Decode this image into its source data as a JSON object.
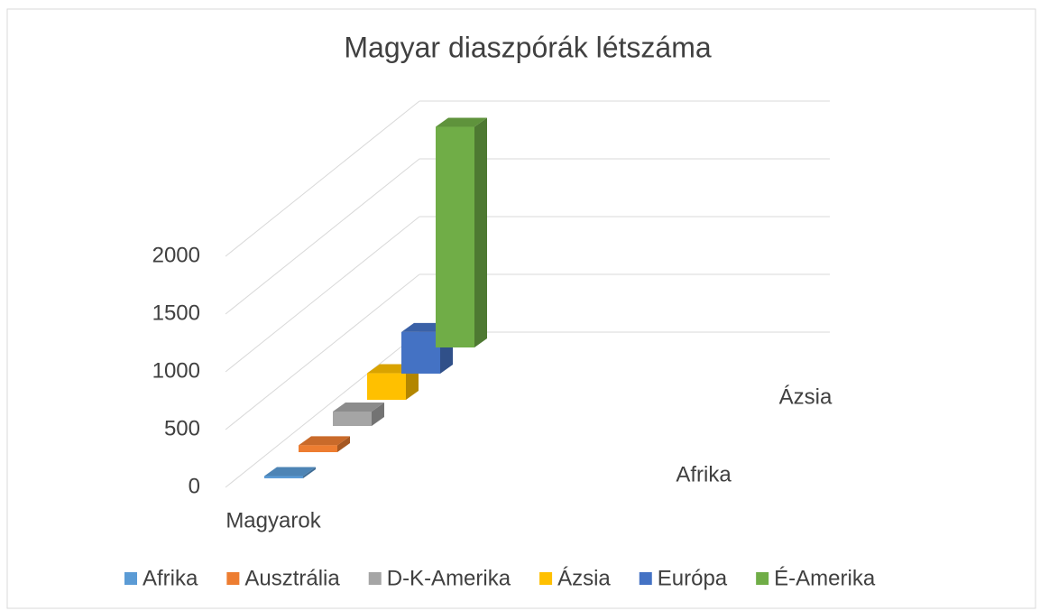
{
  "chart_data": {
    "type": "bar3d",
    "title": "Magyar diaszpórák létszáma",
    "categories": [
      "Magyarok"
    ],
    "series": [
      {
        "name": "Afrika",
        "color": "#5b9bd5",
        "values": [
          20
        ]
      },
      {
        "name": "Ausztrália",
        "color": "#ed7d31",
        "values": [
          60
        ]
      },
      {
        "name": "D-K-Amerika",
        "color": "#a5a5a5",
        "values": [
          125
        ]
      },
      {
        "name": "Ázsia",
        "color": "#ffc000",
        "values": [
          230
        ]
      },
      {
        "name": "Európa",
        "color": "#4472c4",
        "values": [
          360
        ]
      },
      {
        "name": "É-Amerika",
        "color": "#70ad47",
        "values": [
          1910
        ]
      }
    ],
    "depth_labels": [
      "Afrika",
      "Ázsia"
    ],
    "ylim": [
      0,
      2000
    ],
    "yticks": [
      0,
      500,
      1000,
      1500,
      2000
    ],
    "grid": true,
    "legend": "bottom"
  }
}
